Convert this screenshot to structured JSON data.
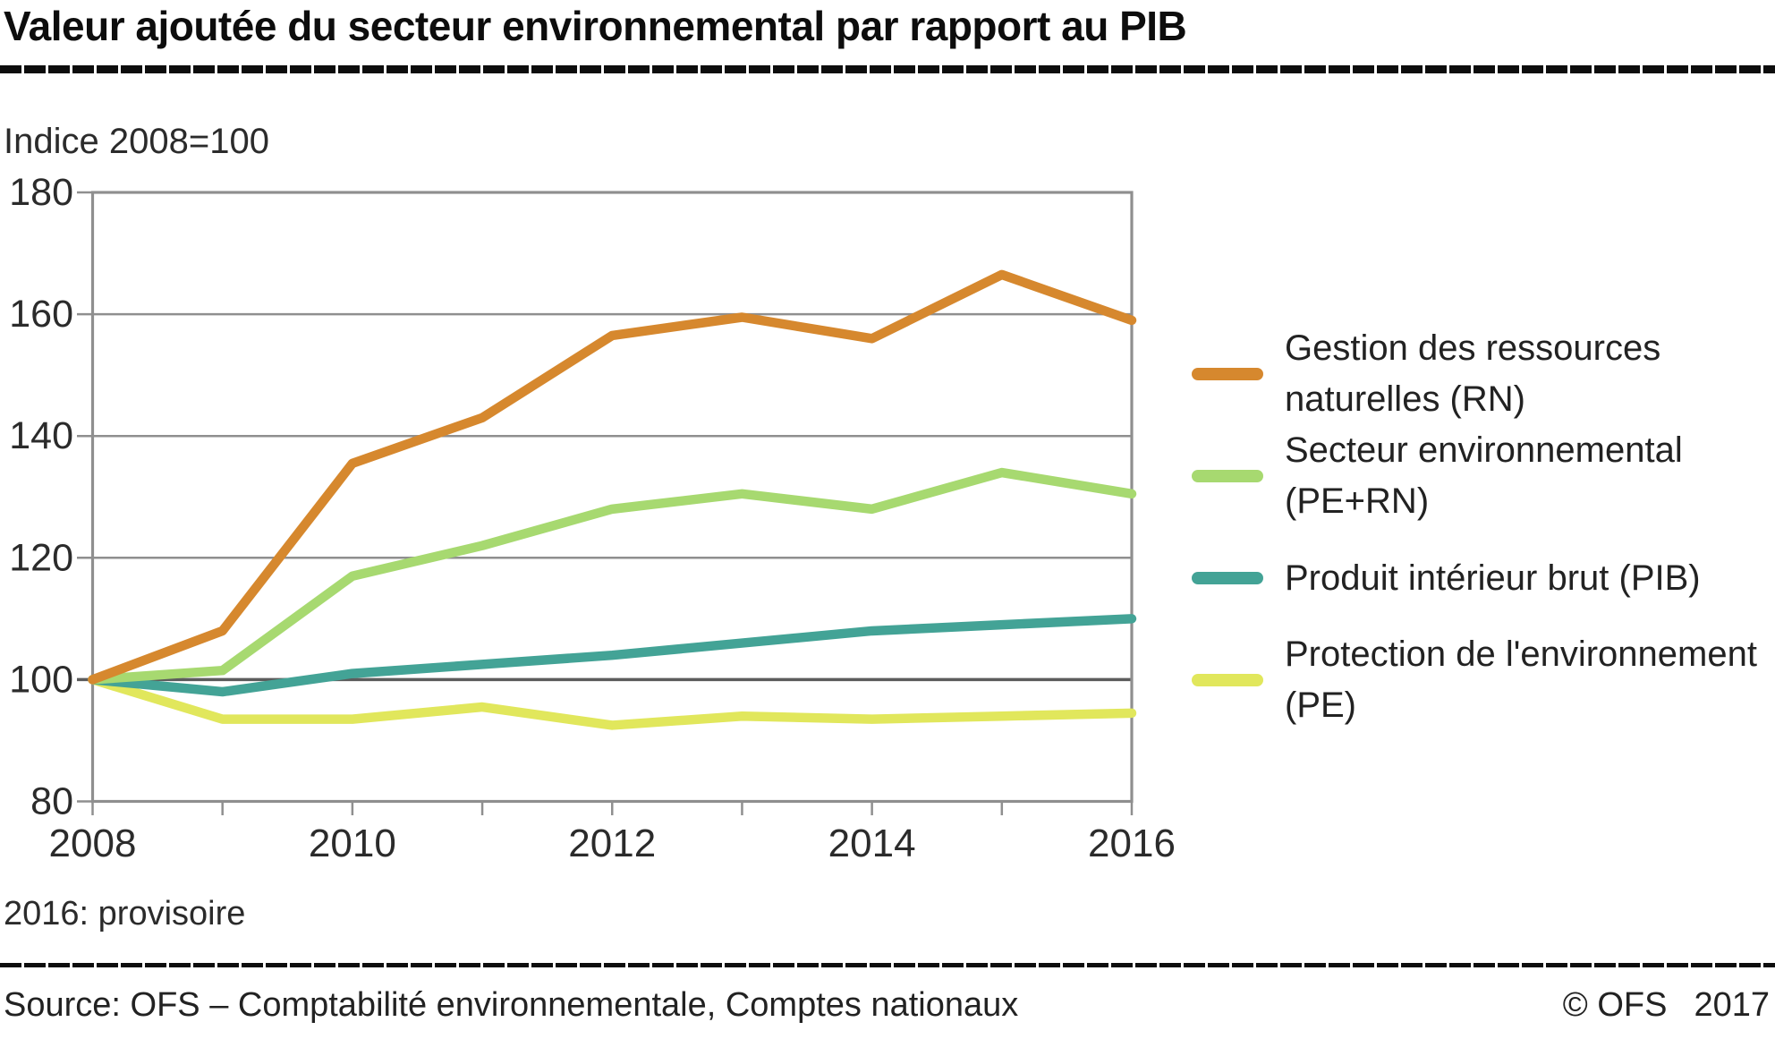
{
  "title": "Valeur ajoutée du secteur environnemental par rapport au PIB",
  "subtitle": "Indice 2008=100",
  "note": "2016: provisoire",
  "footer": {
    "source": "Source: OFS – Comptabilité environnementale, Comptes nationaux",
    "copyright": "© OFS",
    "year": "2017"
  },
  "colors": {
    "grid": "#8f8f8f",
    "baseline": "#5c5c5c",
    "axis_text": "#2b2b2b",
    "rule": "#0d0d0d"
  },
  "chart_data": {
    "type": "line",
    "title": "Valeur ajoutée du secteur environnemental par rapport au PIB",
    "xlabel": "",
    "ylabel": "Indice 2008=100",
    "x": [
      2008,
      2009,
      2010,
      2011,
      2012,
      2013,
      2014,
      2015,
      2016
    ],
    "x_tick_labels": [
      "2008",
      "2010",
      "2012",
      "2014",
      "2016"
    ],
    "ylim": [
      80,
      180
    ],
    "yticks": [
      80,
      100,
      120,
      140,
      160,
      180
    ],
    "baseline_value": 100,
    "grid": "horizontal",
    "legend_position": "right",
    "series": [
      {
        "name": "Gestion des ressources naturelles (RN)",
        "color": "#D6882E",
        "values": [
          100,
          108,
          135.5,
          143,
          156.5,
          159.5,
          156,
          166.5,
          159
        ]
      },
      {
        "name": "Secteur environnemental (PE+RN)",
        "color": "#A7D970",
        "values": [
          100,
          101.5,
          117,
          122,
          128,
          130.5,
          128,
          134,
          130.5
        ]
      },
      {
        "name": "Produit intérieur brut (PIB)",
        "color": "#43A396",
        "values": [
          100,
          98,
          101,
          102.5,
          104,
          106,
          108,
          109,
          110
        ]
      },
      {
        "name": "Protection de l'environnement (PE)",
        "color": "#E1E75C",
        "values": [
          100,
          93.5,
          93.5,
          95.5,
          92.5,
          94,
          93.5,
          94,
          94.5
        ]
      }
    ]
  }
}
